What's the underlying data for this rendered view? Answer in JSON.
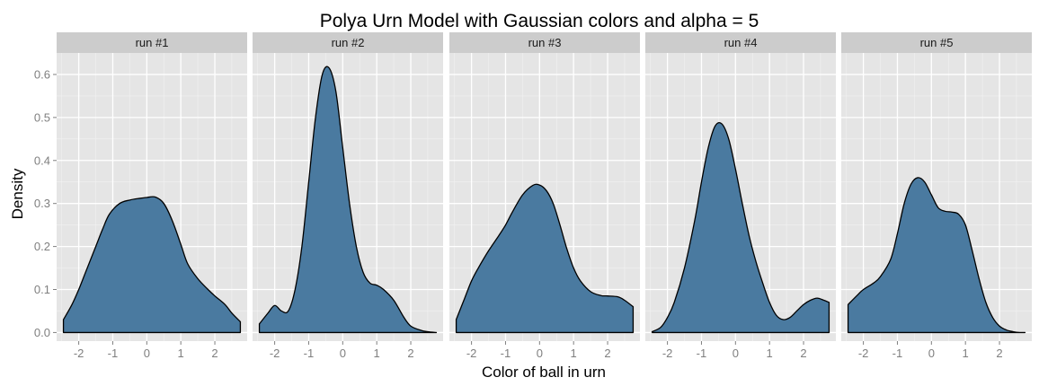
{
  "chart_data": {
    "type": "area",
    "title": "Polya Urn Model with Gaussian colors and alpha = 5",
    "xlabel": "Color of ball in urn",
    "ylabel": "Density",
    "xlim": [
      -2.65,
      2.95
    ],
    "ylim": [
      -0.02,
      0.65
    ],
    "xticks": [
      -2,
      -1,
      0,
      1,
      2
    ],
    "yticks": [
      0.0,
      0.1,
      0.2,
      0.3,
      0.4,
      0.5,
      0.6
    ],
    "ytick_labels": [
      "0.0",
      "0.1",
      "0.2",
      "0.3",
      "0.4",
      "0.5",
      "0.6"
    ],
    "grid": true,
    "fill_color": "#4a7aa0",
    "panel_background": "#e5e5e5",
    "strip_background": "#cccccc",
    "panels": [
      {
        "label": "run #1",
        "x": [
          -2.45,
          -2.2,
          -2.0,
          -1.8,
          -1.5,
          -1.3,
          -1.1,
          -0.8,
          -0.5,
          -0.2,
          0.0,
          0.25,
          0.5,
          0.75,
          1.0,
          1.2,
          1.5,
          1.8,
          2.0,
          2.3,
          2.5,
          2.75
        ],
        "y": [
          0.03,
          0.065,
          0.1,
          0.14,
          0.2,
          0.24,
          0.275,
          0.3,
          0.308,
          0.312,
          0.314,
          0.315,
          0.3,
          0.26,
          0.205,
          0.16,
          0.125,
          0.1,
          0.085,
          0.065,
          0.045,
          0.025
        ]
      },
      {
        "label": "run #2",
        "x": [
          -2.45,
          -2.2,
          -2.0,
          -1.8,
          -1.6,
          -1.4,
          -1.2,
          -1.0,
          -0.8,
          -0.6,
          -0.4,
          -0.2,
          0.0,
          0.2,
          0.4,
          0.6,
          0.8,
          1.0,
          1.2,
          1.5,
          1.8,
          2.0,
          2.3,
          2.5,
          2.75
        ],
        "y": [
          0.02,
          0.045,
          0.063,
          0.05,
          0.05,
          0.1,
          0.2,
          0.35,
          0.5,
          0.6,
          0.615,
          0.56,
          0.43,
          0.3,
          0.2,
          0.14,
          0.115,
          0.11,
          0.1,
          0.075,
          0.035,
          0.015,
          0.005,
          0.002,
          0.0
        ]
      },
      {
        "label": "run #3",
        "x": [
          -2.45,
          -2.2,
          -2.0,
          -1.8,
          -1.5,
          -1.2,
          -1.0,
          -0.8,
          -0.5,
          -0.2,
          0.0,
          0.2,
          0.4,
          0.6,
          0.8,
          1.0,
          1.2,
          1.5,
          1.8,
          2.0,
          2.3,
          2.5,
          2.75
        ],
        "y": [
          0.03,
          0.08,
          0.12,
          0.15,
          0.19,
          0.225,
          0.25,
          0.28,
          0.32,
          0.342,
          0.343,
          0.33,
          0.3,
          0.25,
          0.195,
          0.15,
          0.12,
          0.095,
          0.086,
          0.085,
          0.083,
          0.075,
          0.06
        ]
      },
      {
        "label": "run #4",
        "x": [
          -2.45,
          -2.2,
          -2.0,
          -1.8,
          -1.5,
          -1.2,
          -1.0,
          -0.8,
          -0.6,
          -0.4,
          -0.2,
          0.0,
          0.2,
          0.4,
          0.6,
          0.8,
          1.0,
          1.2,
          1.4,
          1.6,
          1.8,
          2.0,
          2.2,
          2.4,
          2.6,
          2.75
        ],
        "y": [
          0.002,
          0.012,
          0.035,
          0.07,
          0.15,
          0.26,
          0.35,
          0.43,
          0.48,
          0.485,
          0.45,
          0.38,
          0.3,
          0.225,
          0.165,
          0.115,
          0.07,
          0.04,
          0.03,
          0.035,
          0.05,
          0.065,
          0.075,
          0.08,
          0.075,
          0.07
        ]
      },
      {
        "label": "run #5",
        "x": [
          -2.45,
          -2.2,
          -2.0,
          -1.7,
          -1.5,
          -1.2,
          -1.0,
          -0.8,
          -0.6,
          -0.4,
          -0.2,
          0.0,
          0.2,
          0.4,
          0.6,
          0.8,
          1.0,
          1.2,
          1.4,
          1.6,
          1.8,
          2.0,
          2.2,
          2.4,
          2.6,
          2.75
        ],
        "y": [
          0.065,
          0.085,
          0.1,
          0.115,
          0.13,
          0.17,
          0.23,
          0.3,
          0.345,
          0.36,
          0.35,
          0.32,
          0.29,
          0.282,
          0.28,
          0.275,
          0.25,
          0.19,
          0.125,
          0.07,
          0.035,
          0.015,
          0.006,
          0.002,
          0.0,
          0.0
        ]
      }
    ]
  }
}
